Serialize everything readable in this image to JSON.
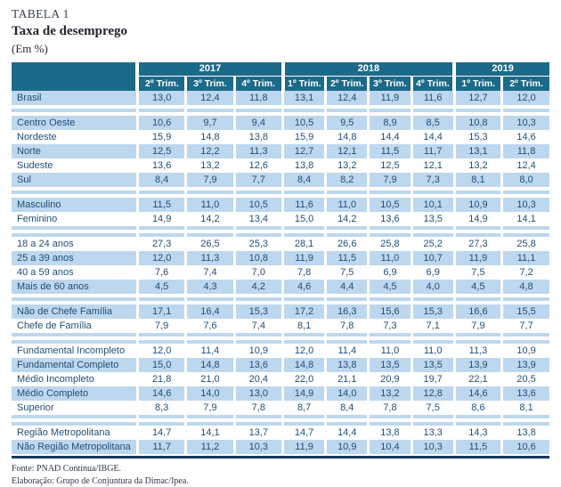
{
  "header": {
    "table_label": "TABELA 1",
    "title": "Taxa de desemprego",
    "unit": "(Em %)"
  },
  "colors": {
    "header_bg": "#1c6a8a",
    "band_bg": "#bdd7ee",
    "cell_text": "#1f4e79",
    "bottom_rule": "#17375e"
  },
  "table": {
    "year_groups": [
      {
        "label": "2017",
        "cols": 3
      },
      {
        "label": "2018",
        "cols": 4
      },
      {
        "label": "2019",
        "cols": 2
      }
    ],
    "quarters": [
      "2º Trim.",
      "3º Trim.",
      "4º Trim.",
      "1º Trim.",
      "2º Trim.",
      "3º Trim.",
      "4º Trim.",
      "1º Trim.",
      "2º Trim."
    ],
    "sections": [
      {
        "name": "brasil",
        "rows": [
          {
            "label": "Brasil",
            "values": [
              "13,0",
              "12,4",
              "11,8",
              "13,1",
              "12,4",
              "11,9",
              "11,6",
              "12,7",
              "12,0"
            ]
          }
        ]
      },
      {
        "name": "regioes",
        "rows": [
          {
            "label": "Centro Oeste",
            "values": [
              "10,6",
              "9,7",
              "9,4",
              "10,5",
              "9,5",
              "8,9",
              "8,5",
              "10,8",
              "10,3"
            ]
          },
          {
            "label": "Nordeste",
            "values": [
              "15,9",
              "14,8",
              "13,8",
              "15,9",
              "14,8",
              "14,4",
              "14,4",
              "15,3",
              "14,6"
            ]
          },
          {
            "label": "Norte",
            "values": [
              "12,5",
              "12,2",
              "11,3",
              "12,7",
              "12,1",
              "11,5",
              "11,7",
              "13,1",
              "11,8"
            ]
          },
          {
            "label": "Sudeste",
            "values": [
              "13,6",
              "13,2",
              "12,6",
              "13,8",
              "13,2",
              "12,5",
              "12,1",
              "13,2",
              "12,4"
            ]
          },
          {
            "label": "Sul",
            "values": [
              "8,4",
              "7,9",
              "7,7",
              "8,4",
              "8,2",
              "7,9",
              "7,3",
              "8,1",
              "8,0"
            ]
          }
        ]
      },
      {
        "name": "sexo",
        "rows": [
          {
            "label": "Masculino",
            "values": [
              "11,5",
              "11,0",
              "10,5",
              "11,6",
              "11,0",
              "10,5",
              "10,1",
              "10,9",
              "10,3"
            ]
          },
          {
            "label": "Feminino",
            "values": [
              "14,9",
              "14,2",
              "13,4",
              "15,0",
              "14,2",
              "13,6",
              "13,5",
              "14,9",
              "14,1"
            ]
          }
        ]
      },
      {
        "name": "idade",
        "rows": [
          {
            "label": "18 a 24 anos",
            "values": [
              "27,3",
              "26,5",
              "25,3",
              "28,1",
              "26,6",
              "25,8",
              "25,2",
              "27,3",
              "25,8"
            ]
          },
          {
            "label": "25 a 39 anos",
            "values": [
              "12,0",
              "11,3",
              "10,8",
              "11,9",
              "11,5",
              "11,0",
              "10,7",
              "11,9",
              "11,1"
            ]
          },
          {
            "label": "40 a 59 anos",
            "values": [
              "7,6",
              "7,4",
              "7,0",
              "7,8",
              "7,5",
              "6,9",
              "6,9",
              "7,5",
              "7,2"
            ]
          },
          {
            "label": "Mais de 60 anos",
            "values": [
              "4,5",
              "4,3",
              "4,2",
              "4,6",
              "4,4",
              "4,5",
              "4,0",
              "4,5",
              "4,8"
            ]
          }
        ]
      },
      {
        "name": "chefia",
        "rows": [
          {
            "label": "Não de Chefe Família",
            "values": [
              "17,1",
              "16,4",
              "15,3",
              "17,2",
              "16,3",
              "15,6",
              "15,3",
              "16,6",
              "15,5"
            ]
          },
          {
            "label": "Chefe de Família",
            "values": [
              "7,9",
              "7,6",
              "7,4",
              "8,1",
              "7,8",
              "7,3",
              "7,1",
              "7,9",
              "7,7"
            ]
          }
        ]
      },
      {
        "name": "escolaridade",
        "rows": [
          {
            "label": "Fundamental Incompleto",
            "values": [
              "12,0",
              "11,4",
              "10,9",
              "12,0",
              "11,4",
              "11,0",
              "11,0",
              "11,3",
              "10,9"
            ]
          },
          {
            "label": "Fundamental Completo",
            "values": [
              "15,0",
              "14,8",
              "13,6",
              "14,8",
              "13,8",
              "13,5",
              "13,5",
              "13,9",
              "13,9"
            ]
          },
          {
            "label": "Médio Incompleto",
            "values": [
              "21,8",
              "21,0",
              "20,4",
              "22,0",
              "21,1",
              "20,9",
              "19,7",
              "22,1",
              "20,5"
            ]
          },
          {
            "label": "Médio Completo",
            "values": [
              "14,6",
              "14,0",
              "13,0",
              "14,9",
              "14,0",
              "13,2",
              "12,8",
              "14,6",
              "13,6"
            ]
          },
          {
            "label": "Superior",
            "values": [
              "8,3",
              "7,9",
              "7,8",
              "8,7",
              "8,4",
              "7,8",
              "7,5",
              "8,6",
              "8,1"
            ]
          }
        ]
      },
      {
        "name": "metropolitana",
        "rows": [
          {
            "label": "Região Metropolitana",
            "values": [
              "14,7",
              "14,1",
              "13,7",
              "14,7",
              "14,4",
              "13,8",
              "13,3",
              "14,3",
              "13,8"
            ]
          },
          {
            "label": "Não Região Metropolitana",
            "values": [
              "11,7",
              "11,2",
              "10,3",
              "11,9",
              "10,9",
              "10,4",
              "10,3",
              "11,5",
              "10,6"
            ]
          }
        ]
      }
    ]
  },
  "footer": {
    "source": "Fonte: PNAD Contínua/IBGE.",
    "elaboration": "Elaboração: Grupo de Conjuntura da Dimac/Ipea."
  }
}
